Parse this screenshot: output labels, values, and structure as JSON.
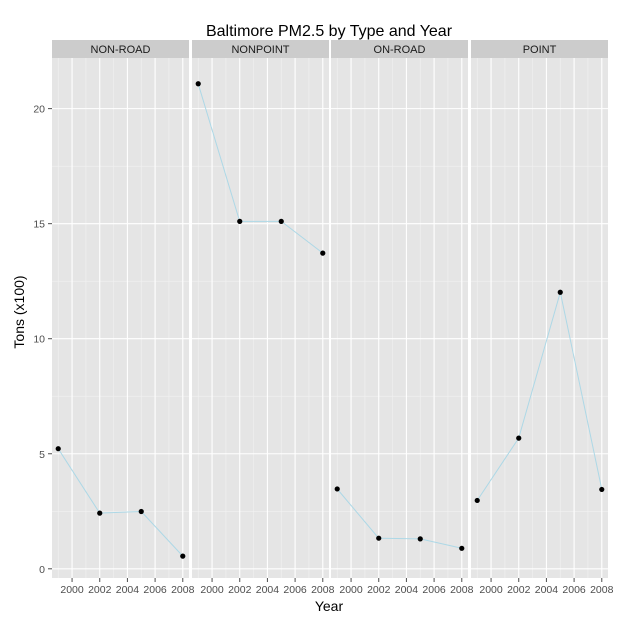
{
  "chart_data": {
    "type": "line",
    "title": "Baltimore PM2.5 by Type and Year",
    "xlabel": "Year",
    "ylabel": "Tons (x100)",
    "ylim": [
      -0.4,
      22.2
    ],
    "yticks": [
      0,
      5,
      10,
      15,
      20
    ],
    "xlim": [
      1998.55,
      2008.45
    ],
    "xticks": [
      2000,
      2002,
      2004,
      2006,
      2008
    ],
    "x": [
      1999,
      2002,
      2005,
      2008
    ],
    "grid": true,
    "colors": {
      "line": "#add8e6",
      "point": "#000000",
      "panel": "#e5e5e5",
      "strip": "#cccccc",
      "grid": "#ffffff"
    },
    "facets": [
      {
        "name": "NON-ROAD",
        "values": [
          5.22,
          2.42,
          2.49,
          0.55
        ]
      },
      {
        "name": "NONPOINT",
        "values": [
          21.08,
          15.1,
          15.1,
          13.72
        ]
      },
      {
        "name": "ON-ROAD",
        "values": [
          3.47,
          1.33,
          1.3,
          0.89
        ]
      },
      {
        "name": "POINT",
        "values": [
          2.97,
          5.68,
          12.02,
          3.45
        ]
      }
    ]
  }
}
